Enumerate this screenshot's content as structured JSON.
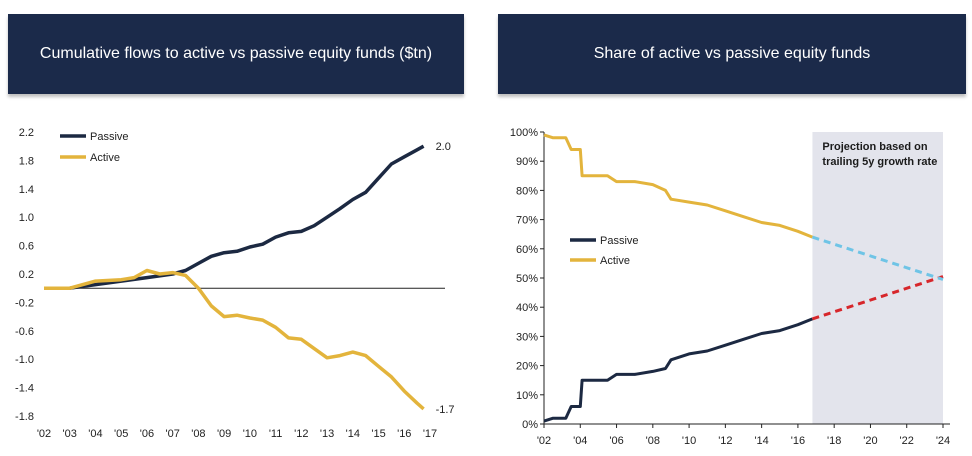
{
  "panels": [
    {
      "title": "Cumulative flows to active vs passive equity funds ($tn)"
    },
    {
      "title": "Share of active vs passive equity funds"
    }
  ],
  "colors": {
    "header_bg": "#1b2a4a",
    "passive": "#1c2942",
    "active": "#e3b43c",
    "passive_projection": "#d7262b",
    "active_projection": "#6fc4e6",
    "projection_shade": "#e3e4ec"
  },
  "chart_data": [
    {
      "type": "line",
      "title": "Cumulative flows to active vs passive equity funds ($tn)",
      "xlabel": "",
      "ylabel": "",
      "x_ticks": [
        "'02",
        "'03",
        "'04",
        "'05",
        "'06",
        "'07",
        "'08",
        "'09",
        "'10",
        "'11",
        "'12",
        "'13",
        "'14",
        "'15",
        "'16",
        "'17"
      ],
      "y_ticks": [
        "2.2",
        "1.8",
        "1.4",
        "1.0",
        "0.6",
        "0.2",
        "-0.2",
        "-0.6",
        "-1.0",
        "-1.4",
        "-1.8"
      ],
      "xlim": [
        2002,
        2017
      ],
      "ylim": [
        -1.8,
        2.2
      ],
      "zero_line": 0,
      "legend": {
        "position": "top-left",
        "entries": [
          "Passive",
          "Active"
        ]
      },
      "series": [
        {
          "name": "Passive",
          "end_label": "2.0",
          "points": [
            [
              2002,
              0.0
            ],
            [
              2003,
              0.0
            ],
            [
              2004,
              0.05
            ],
            [
              2005,
              0.1
            ],
            [
              2006,
              0.15
            ],
            [
              2007,
              0.2
            ],
            [
              2007.5,
              0.25
            ],
            [
              2008,
              0.35
            ],
            [
              2008.5,
              0.45
            ],
            [
              2009,
              0.5
            ],
            [
              2009.5,
              0.52
            ],
            [
              2010,
              0.58
            ],
            [
              2010.5,
              0.62
            ],
            [
              2011,
              0.72
            ],
            [
              2011.5,
              0.78
            ],
            [
              2012,
              0.8
            ],
            [
              2012.5,
              0.88
            ],
            [
              2013,
              1.0
            ],
            [
              2013.5,
              1.12
            ],
            [
              2014,
              1.25
            ],
            [
              2014.5,
              1.35
            ],
            [
              2015,
              1.55
            ],
            [
              2015.5,
              1.75
            ],
            [
              2016,
              1.85
            ],
            [
              2016.5,
              1.95
            ],
            [
              2016.75,
              2.0
            ]
          ]
        },
        {
          "name": "Active",
          "end_label": "-1.7",
          "points": [
            [
              2002,
              0.0
            ],
            [
              2003,
              0.0
            ],
            [
              2004,
              0.1
            ],
            [
              2005,
              0.12
            ],
            [
              2005.5,
              0.15
            ],
            [
              2006,
              0.25
            ],
            [
              2006.5,
              0.2
            ],
            [
              2007,
              0.22
            ],
            [
              2007.5,
              0.18
            ],
            [
              2008,
              0.0
            ],
            [
              2008.5,
              -0.25
            ],
            [
              2009,
              -0.4
            ],
            [
              2009.5,
              -0.38
            ],
            [
              2010,
              -0.42
            ],
            [
              2010.5,
              -0.45
            ],
            [
              2011,
              -0.55
            ],
            [
              2011.5,
              -0.7
            ],
            [
              2012,
              -0.72
            ],
            [
              2012.5,
              -0.85
            ],
            [
              2013,
              -0.98
            ],
            [
              2013.5,
              -0.95
            ],
            [
              2014,
              -0.9
            ],
            [
              2014.5,
              -0.95
            ],
            [
              2015,
              -1.1
            ],
            [
              2015.5,
              -1.25
            ],
            [
              2016,
              -1.45
            ],
            [
              2016.5,
              -1.62
            ],
            [
              2016.75,
              -1.7
            ]
          ]
        }
      ]
    },
    {
      "type": "line",
      "title": "Share of active vs passive equity funds",
      "xlabel": "",
      "ylabel": "",
      "x_ticks": [
        "'02",
        "'04",
        "'06",
        "'08",
        "'10",
        "'12",
        "'14",
        "'16",
        "'18",
        "'20",
        "'22",
        "'24"
      ],
      "y_ticks": [
        "100%",
        "90%",
        "80%",
        "70%",
        "60%",
        "50%",
        "40%",
        "30%",
        "20%",
        "10%",
        "0%"
      ],
      "xlim": [
        2002,
        2024
      ],
      "ylim": [
        0,
        100
      ],
      "legend": {
        "position": "center-left",
        "entries": [
          "Passive",
          "Active"
        ]
      },
      "annotation": {
        "text_lines": [
          "Projection based on",
          "trailing 5y growth rate"
        ],
        "shade_start": 2016.8,
        "shade_end": 2024
      },
      "series": [
        {
          "name": "Passive",
          "points": [
            [
              2002,
              1
            ],
            [
              2002.5,
              2
            ],
            [
              2003.2,
              2
            ],
            [
              2003.5,
              6
            ],
            [
              2004,
              6
            ],
            [
              2004.1,
              15
            ],
            [
              2005.5,
              15
            ],
            [
              2006,
              17
            ],
            [
              2007,
              17
            ],
            [
              2008,
              18
            ],
            [
              2008.7,
              19
            ],
            [
              2009,
              22
            ],
            [
              2010,
              24
            ],
            [
              2011,
              25
            ],
            [
              2012,
              27
            ],
            [
              2013,
              29
            ],
            [
              2014,
              31
            ],
            [
              2015,
              32
            ],
            [
              2016,
              34
            ],
            [
              2016.8,
              36
            ]
          ]
        },
        {
          "name": "Active",
          "points": [
            [
              2002,
              99
            ],
            [
              2002.5,
              98
            ],
            [
              2003.2,
              98
            ],
            [
              2003.5,
              94
            ],
            [
              2004,
              94
            ],
            [
              2004.1,
              85
            ],
            [
              2005.5,
              85
            ],
            [
              2006,
              83
            ],
            [
              2007,
              83
            ],
            [
              2008,
              82
            ],
            [
              2008.7,
              80
            ],
            [
              2009,
              77
            ],
            [
              2010,
              76
            ],
            [
              2011,
              75
            ],
            [
              2012,
              73
            ],
            [
              2013,
              71
            ],
            [
              2014,
              69
            ],
            [
              2015,
              68
            ],
            [
              2016,
              66
            ],
            [
              2016.8,
              64
            ]
          ]
        },
        {
          "name": "Passive projection",
          "dashed": true,
          "points": [
            [
              2016.8,
              36
            ],
            [
              2024,
              50.5
            ]
          ]
        },
        {
          "name": "Active projection",
          "dashed": true,
          "points": [
            [
              2016.8,
              64
            ],
            [
              2024,
              49.5
            ]
          ]
        }
      ]
    }
  ]
}
